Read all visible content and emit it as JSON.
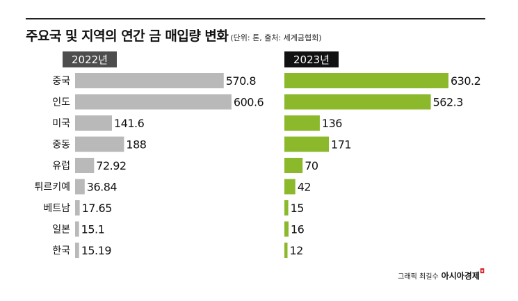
{
  "title": "주요국 및 지역의 연간 금 매입량 변화",
  "subtitle": "(단위: 톤, 출처: 세계금협회)",
  "credit": {
    "byline": "그래픽 최길수",
    "publisher": "아시아경제"
  },
  "colors": {
    "series_2022": "#b9b9b9",
    "series_2023": "#8cb92c",
    "header_bg": "#4d4d4d",
    "header_bg_2023": "#111111",
    "rule": "#222222"
  },
  "chart_data": {
    "type": "bar",
    "orientation": "horizontal",
    "categories": [
      "중국",
      "인도",
      "미국",
      "중동",
      "유럽",
      "튀르키예",
      "베트남",
      "일본",
      "한국"
    ],
    "series": [
      {
        "name": "2022년",
        "values": [
          570.8,
          600.6,
          141.6,
          188,
          72.92,
          36.84,
          17.65,
          15.1,
          15.19
        ],
        "labels": [
          "570.8",
          "600.6",
          "141.6",
          "188",
          "72.92",
          "36.84",
          "17.65",
          "15.1",
          "15.19"
        ]
      },
      {
        "name": "2023년",
        "values": [
          630.2,
          562.3,
          136,
          171,
          70,
          42,
          15,
          16,
          12
        ],
        "labels": [
          "630.2",
          "562.3",
          "136",
          "171",
          "70",
          "42",
          "15",
          "16",
          "12"
        ]
      }
    ],
    "title": "주요국 및 지역의 연간 금 매입량 변화",
    "unit": "톤",
    "legend": "panel headers"
  }
}
